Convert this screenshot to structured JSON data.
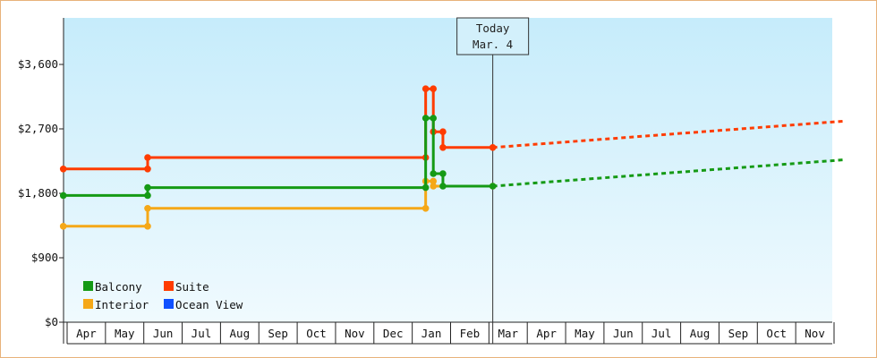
{
  "chart_data": {
    "type": "line",
    "title": "",
    "xlabel": "",
    "ylabel": "",
    "y_tick_labels": [
      "$0",
      "$900",
      "$1,800",
      "$2,700",
      "$3,600"
    ],
    "y_ticks": [
      0,
      900,
      1800,
      2700,
      3600
    ],
    "ylim": [
      0,
      4250
    ],
    "x_tick_labels": [
      "Apr",
      "May",
      "Jun",
      "Jul",
      "Aug",
      "Sep",
      "Oct",
      "Nov",
      "Dec",
      "Jan",
      "Feb",
      "Mar",
      "Apr",
      "May",
      "Jun",
      "Jul",
      "Aug",
      "Sep",
      "Oct",
      "Nov"
    ],
    "xlim": [
      0,
      20.3
    ],
    "today": {
      "label": "Today",
      "date": "Mar. 4",
      "x": 11.1
    },
    "grid": false,
    "legend_position": "bottom-left",
    "series": [
      {
        "name": "Balcony",
        "color": "#159a15",
        "values": [
          [
            -0.1,
            1770
          ],
          [
            2.1,
            1770
          ],
          [
            2.1,
            1880
          ],
          [
            9.35,
            1880
          ],
          [
            9.35,
            2850
          ],
          [
            9.55,
            2850
          ],
          [
            9.55,
            2075
          ],
          [
            9.8,
            2075
          ],
          [
            9.8,
            1900
          ],
          [
            11.1,
            1900
          ]
        ],
        "forecast": [
          [
            11.1,
            1900
          ],
          [
            20.3,
            2270
          ]
        ]
      },
      {
        "name": "Suite",
        "color": "#ff3c00",
        "values": [
          [
            -0.1,
            2140
          ],
          [
            2.1,
            2140
          ],
          [
            2.1,
            2300
          ],
          [
            9.35,
            2300
          ],
          [
            9.35,
            3260
          ],
          [
            9.55,
            3260
          ],
          [
            9.55,
            2660
          ],
          [
            9.8,
            2660
          ],
          [
            9.8,
            2440
          ],
          [
            11.1,
            2440
          ]
        ],
        "forecast": [
          [
            11.1,
            2440
          ],
          [
            20.3,
            2810
          ]
        ]
      },
      {
        "name": "Interior",
        "color": "#f5a818",
        "values": [
          [
            -0.1,
            1340
          ],
          [
            2.1,
            1340
          ],
          [
            2.1,
            1590
          ],
          [
            9.35,
            1590
          ],
          [
            9.35,
            1970
          ],
          [
            9.55,
            1970
          ],
          [
            9.55,
            1900
          ],
          [
            11.1,
            1900
          ]
        ],
        "forecast": []
      },
      {
        "name": "Ocean View",
        "color": "#1050ff",
        "values": [],
        "forecast": []
      }
    ]
  }
}
